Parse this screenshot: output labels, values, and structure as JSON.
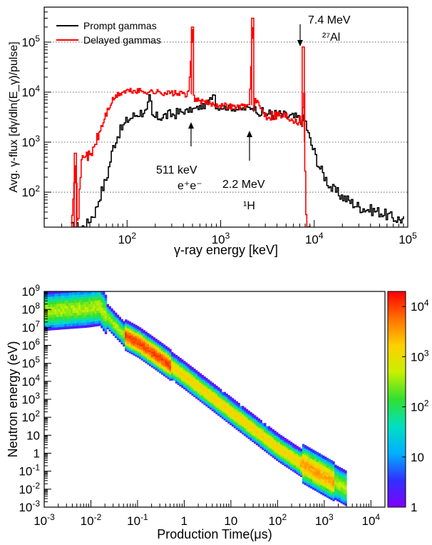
{
  "chart_data": [
    {
      "type": "line",
      "xlabel": "γ-ray energy [keV]",
      "ylabel": "Avg. γ-flux [dγ/dln(E_γ)/pulse]",
      "xscale": "log",
      "yscale": "log",
      "xlim": [
        13,
        100000
      ],
      "ylim": [
        20,
        500000
      ],
      "x_ticks": [
        {
          "value": 100,
          "mantissa": "10",
          "exp": "2"
        },
        {
          "value": 1000,
          "mantissa": "10",
          "exp": "3"
        },
        {
          "value": 10000,
          "mantissa": "10",
          "exp": "4"
        },
        {
          "value": 100000,
          "mantissa": "10",
          "exp": "5"
        }
      ],
      "y_ticks": [
        {
          "value": 100,
          "mantissa": "10",
          "exp": "2"
        },
        {
          "value": 1000,
          "mantissa": "10",
          "exp": "3"
        },
        {
          "value": 10000,
          "mantissa": "10",
          "exp": "4"
        },
        {
          "value": 100000,
          "mantissa": "10",
          "exp": "5"
        }
      ],
      "grid": "horizontal dotted at decades",
      "legend_position": "top-left",
      "series": [
        {
          "name": "Prompt gammas",
          "color": "#000000",
          "x": [
            25,
            35,
            38,
            40,
            45,
            50,
            60,
            70,
            80,
            100,
            130,
            160,
            175,
            180,
            200,
            300,
            500,
            700,
            850,
            870,
            1000,
            1300,
            1600,
            2200,
            2500,
            3000,
            4000,
            5000,
            6500,
            7500,
            8000,
            8500,
            9000,
            10000,
            11000,
            12000,
            15000,
            20000,
            30000,
            50000,
            70000,
            90000
          ],
          "y": [
            20,
            20,
            25,
            30,
            40,
            80,
            200,
            800,
            1500,
            2800,
            3800,
            4200,
            10000,
            3200,
            3100,
            3600,
            4500,
            5500,
            10000,
            5000,
            5000,
            4800,
            4500,
            5000,
            4000,
            3700,
            3600,
            3300,
            3000,
            2800,
            2500,
            1500,
            1000,
            600,
            350,
            250,
            120,
            80,
            50,
            40,
            30,
            28
          ]
        },
        {
          "name": "Delayed gammas",
          "color": "#ff0000",
          "x": [
            25,
            28,
            29,
            30,
            32,
            35,
            40,
            45,
            50,
            60,
            70,
            80,
            90,
            100,
            130,
            200,
            300,
            450,
            500,
            511,
            530,
            700,
            1000,
            1500,
            2000,
            2200,
            2230,
            2300,
            3000,
            4000,
            5000,
            6000,
            7000,
            7500,
            7640,
            7800,
            8200,
            9000
          ],
          "y": [
            20,
            600,
            20,
            40,
            400,
            600,
            500,
            900,
            1500,
            4000,
            7000,
            9000,
            10000,
            10500,
            10500,
            10000,
            9500,
            9000,
            200000,
            9000,
            7000,
            6000,
            5500,
            5000,
            5500,
            300000,
            4000,
            7000,
            3500,
            3500,
            3300,
            3000,
            2700,
            2500,
            80000,
            1000,
            20,
            20
          ]
        }
      ],
      "annotations": [
        {
          "label": "511 keV",
          "sub": "e⁺e⁻",
          "x": 511
        },
        {
          "label": "2.2 MeV",
          "sub": "¹H",
          "x": 2230
        },
        {
          "label": "7.4 MeV",
          "sub": "²⁷Al",
          "x": 7640
        }
      ]
    },
    {
      "type": "heatmap",
      "xlabel": "Production Time(μs)",
      "ylabel": "Neutron energy (eV)",
      "xscale": "log",
      "yscale": "log",
      "xlim": [
        0.001,
        20000
      ],
      "ylim": [
        0.001,
        1000000000
      ],
      "x_ticks": [
        {
          "value": 0.001,
          "mantissa": "10",
          "exp": "-3"
        },
        {
          "value": 0.01,
          "mantissa": "10",
          "exp": "-2"
        },
        {
          "value": 0.1,
          "mantissa": "10",
          "exp": "-1"
        },
        {
          "value": 1,
          "mantissa": "1",
          "exp": ""
        },
        {
          "value": 10,
          "mantissa": "10",
          "exp": ""
        },
        {
          "value": 100,
          "mantissa": "10",
          "exp": "2"
        },
        {
          "value": 1000,
          "mantissa": "10",
          "exp": "3"
        },
        {
          "value": 10000,
          "mantissa": "10",
          "exp": "4"
        }
      ],
      "y_ticks": [
        {
          "value": 0.001,
          "mantissa": "10",
          "exp": "-3"
        },
        {
          "value": 0.01,
          "mantissa": "10",
          "exp": "-2"
        },
        {
          "value": 0.1,
          "mantissa": "10",
          "exp": "-1"
        },
        {
          "value": 1,
          "mantissa": "1",
          "exp": ""
        },
        {
          "value": 10,
          "mantissa": "10",
          "exp": ""
        },
        {
          "value": 100,
          "mantissa": "10",
          "exp": "2"
        },
        {
          "value": 1000,
          "mantissa": "10",
          "exp": "3"
        },
        {
          "value": 10000,
          "mantissa": "10",
          "exp": "4"
        },
        {
          "value": 100000,
          "mantissa": "10",
          "exp": "5"
        },
        {
          "value": 1000000,
          "mantissa": "10",
          "exp": "6"
        },
        {
          "value": 10000000,
          "mantissa": "10",
          "exp": "7"
        },
        {
          "value": 100000000,
          "mantissa": "10",
          "exp": "8"
        },
        {
          "value": 1000000000,
          "mantissa": "10",
          "exp": "9"
        }
      ],
      "colorbar": {
        "scale": "log",
        "range": [
          1,
          20000
        ],
        "ticks": [
          {
            "value": 1,
            "mantissa": "1",
            "exp": ""
          },
          {
            "value": 10,
            "mantissa": "10",
            "exp": ""
          },
          {
            "value": 100,
            "mantissa": "10",
            "exp": "2"
          },
          {
            "value": 1000,
            "mantissa": "10",
            "exp": "3"
          },
          {
            "value": 10000,
            "mantissa": "10",
            "exp": "4"
          }
        ],
        "colors": [
          "#8000ff",
          "#3030ff",
          "#00b0ff",
          "#00e0c0",
          "#30e030",
          "#c8f000",
          "#ffd000",
          "#ff7000",
          "#ff0000"
        ]
      },
      "band": {
        "path_time_us": [
          0.001,
          0.003,
          0.008,
          0.015,
          0.02,
          0.05,
          0.1,
          0.3,
          1,
          10,
          100,
          300,
          1000,
          3000
        ],
        "path_energy_ev": [
          80000000,
          100000000,
          120000000,
          150000000,
          50000000,
          4000000,
          1500000,
          200000,
          20000,
          200,
          2,
          0.3,
          0.05,
          0.01
        ],
        "hot_segments": [
          {
            "t_range": [
              0.05,
              0.5
            ],
            "intensity": 10000
          },
          {
            "t_range": [
              0.5,
              300
            ],
            "intensity": 1500
          },
          {
            "t_range": [
              300,
              1500
            ],
            "intensity": 3000
          }
        ]
      }
    }
  ]
}
